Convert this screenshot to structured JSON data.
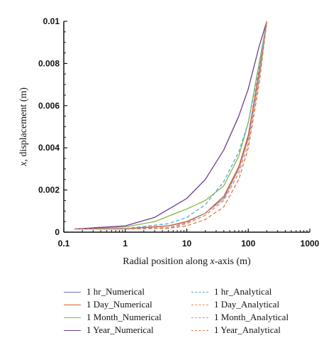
{
  "chart_data": {
    "type": "line",
    "xscale": "log",
    "xlim": [
      0.1,
      1000
    ],
    "ylim": [
      0,
      0.01
    ],
    "xticks": [
      "0.1",
      "1",
      "10",
      "100",
      "1000"
    ],
    "yticks": [
      "0",
      "0.002",
      "0.004",
      "0.006",
      "0.008",
      "0.01"
    ],
    "xlabel_parts": [
      "Radial position along ",
      "x",
      "-axis (m)"
    ],
    "ylabel_parts": [
      "x",
      ", displacement (m)"
    ],
    "series": [
      {
        "name": "1 hr_Numerical",
        "color": "#6b6fc7",
        "dash": false,
        "x": [
          0.15,
          1,
          5,
          10,
          20,
          40,
          70,
          100,
          150,
          200
        ],
        "y": [
          0.00015,
          0.00016,
          0.0003,
          0.0005,
          0.0009,
          0.0016,
          0.003,
          0.0045,
          0.0075,
          0.01
        ]
      },
      {
        "name": "1 Day_Numerical",
        "color": "#d9582e",
        "dash": false,
        "x": [
          0.15,
          1,
          5,
          10,
          20,
          40,
          70,
          100,
          150,
          200
        ],
        "y": [
          0.00015,
          0.00016,
          0.0003,
          0.0005,
          0.0009,
          0.0017,
          0.0031,
          0.0046,
          0.0076,
          0.01
        ]
      },
      {
        "name": "1 Month_Numerical",
        "color": "#8ab548",
        "dash": false,
        "x": [
          0.15,
          1,
          3,
          10,
          20,
          40,
          70,
          100,
          150,
          200
        ],
        "y": [
          0.00015,
          0.00025,
          0.0005,
          0.0011,
          0.0015,
          0.0022,
          0.0036,
          0.0052,
          0.008,
          0.01
        ]
      },
      {
        "name": "1 Year_Numerical",
        "color": "#6e3b91",
        "dash": false,
        "x": [
          0.15,
          1,
          3,
          10,
          20,
          40,
          70,
          100,
          150,
          200
        ],
        "y": [
          0.00015,
          0.0003,
          0.0007,
          0.0016,
          0.0025,
          0.0039,
          0.0055,
          0.0068,
          0.0088,
          0.01
        ]
      },
      {
        "name": "1 hr_Analytical",
        "color": "#5aaad8",
        "dash": true,
        "x": [
          0.15,
          1,
          5,
          10,
          20,
          40,
          70,
          100,
          150,
          200
        ],
        "y": [
          0.00015,
          0.00018,
          0.0004,
          0.0007,
          0.0013,
          0.0024,
          0.0038,
          0.0052,
          0.0078,
          0.01
        ]
      },
      {
        "name": "1 Day_Analytical",
        "color": "#e8894e",
        "dash": true,
        "x": [
          0.15,
          1,
          5,
          10,
          20,
          40,
          70,
          100,
          150,
          200
        ],
        "y": [
          0.00015,
          0.00015,
          0.0002,
          0.0004,
          0.0008,
          0.0015,
          0.0028,
          0.0042,
          0.0072,
          0.01
        ]
      },
      {
        "name": "1 Month_Analytical",
        "color": "#9aa0bd",
        "dash": true,
        "x": [
          0.15,
          1,
          5,
          10,
          20,
          40,
          70,
          100,
          150,
          200
        ],
        "y": [
          0.00015,
          0.00016,
          0.00022,
          0.00045,
          0.0009,
          0.0016,
          0.003,
          0.0044,
          0.0074,
          0.01
        ]
      },
      {
        "name": "1 Year_Analytical",
        "color": "#d97a52",
        "dash": true,
        "x": [
          0.15,
          1,
          5,
          10,
          20,
          40,
          70,
          100,
          150,
          200
        ],
        "y": [
          0.00015,
          0.00015,
          0.00018,
          0.0003,
          0.0006,
          0.0012,
          0.0025,
          0.004,
          0.007,
          0.01
        ]
      }
    ],
    "legend_order": [
      0,
      4,
      1,
      5,
      2,
      6,
      3,
      7
    ]
  }
}
